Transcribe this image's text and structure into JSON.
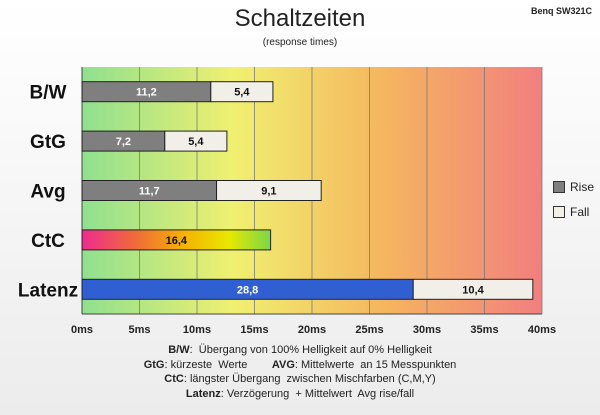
{
  "header": {
    "title": "Schaltzeiten",
    "subtitle": "(response times)",
    "model": "Benq SW321C"
  },
  "colors": {
    "rise": "#7f7f7f",
    "fall": "#f2efe8",
    "latency": "#2f5fd0",
    "ctc_gradient": [
      "#ee2b8f",
      "#f06a3a",
      "#f5b400",
      "#e8e800",
      "#7cd64a"
    ],
    "background_gradient": [
      "#8fe08f",
      "#f0f070",
      "#f5b55f",
      "#f27f7f"
    ]
  },
  "chart_data": {
    "type": "bar",
    "orientation": "horizontal",
    "stacked": true,
    "categories": [
      "B/W",
      "GtG",
      "Avg",
      "CtC",
      "Latenz"
    ],
    "series": [
      {
        "name": "Rise",
        "values": [
          11.2,
          7.2,
          11.7,
          16.4,
          28.8
        ]
      },
      {
        "name": "Fall",
        "values": [
          5.4,
          5.4,
          9.1,
          null,
          10.4
        ]
      }
    ],
    "data_labels": [
      [
        "11,2",
        "5,4"
      ],
      [
        "7,2",
        "5,4"
      ],
      [
        "11,7",
        "9,1"
      ],
      [
        "16,4",
        null
      ],
      [
        "28,8",
        "10,4"
      ]
    ],
    "xlim": [
      0,
      40
    ],
    "xticks": [
      "0ms",
      "5ms",
      "10ms",
      "15ms",
      "20ms",
      "25ms",
      "30ms",
      "35ms",
      "40ms"
    ],
    "legend": [
      "Rise",
      "Fall"
    ],
    "legend_position": "right",
    "grid": true
  },
  "legend": {
    "rise": "Rise",
    "fall": "Fall"
  },
  "footnotes": {
    "bw_key": "B/W",
    "bw_text": ":  Übergang von 100% Helligkeit auf 0% Helligkeit",
    "gtg_key": "GtG",
    "gtg_text": ": kürzeste  Werte        ",
    "avg_key": "AVG",
    "avg_text": ": Mittelwerte  an 15 Messpunkten",
    "ctc_key": "CtC",
    "ctc_text": ": längster Übergang  zwischen Mischfarben (C,M,Y)",
    "lat_key": "Latenz",
    "lat_text": ": Verzögerung  + Mittelwert  Avg rise/fall"
  }
}
